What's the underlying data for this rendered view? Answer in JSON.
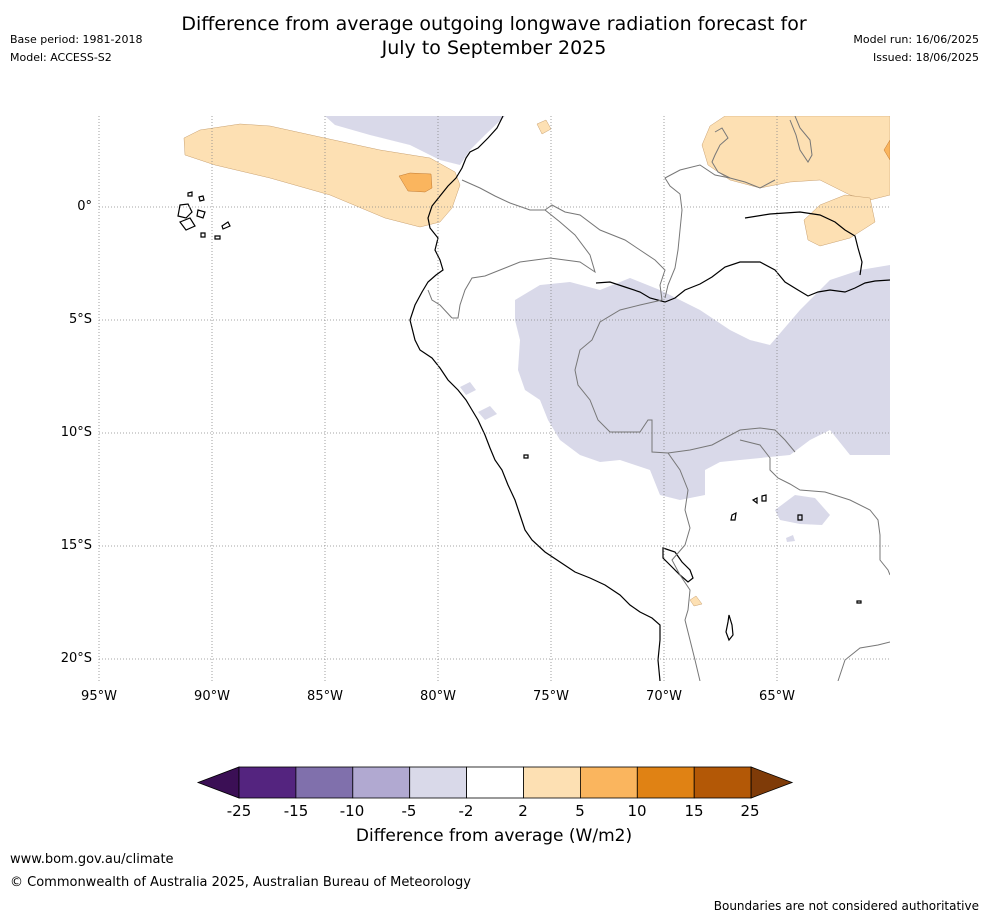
{
  "header": {
    "title_line1": "Difference from average outgoing longwave radiation forecast for",
    "title_line2": "July to September 2025",
    "base_period": "Base period: 1981-2018",
    "model": "Model: ACCESS-S2",
    "model_run": "Model run: 16/06/2025",
    "issued": "Issued: 18/06/2025"
  },
  "map": {
    "lon_labels": [
      "95°W",
      "90°W",
      "85°W",
      "80°W",
      "75°W",
      "70°W",
      "65°W"
    ],
    "lat_labels": [
      "0°",
      "5°S",
      "10°S",
      "15°S",
      "20°S"
    ],
    "grid": true
  },
  "colorbar": {
    "title": "Difference from average (W/m2)",
    "ticks": [
      "-25",
      "-15",
      "-10",
      "-5",
      "-2",
      "2",
      "5",
      "10",
      "15",
      "25"
    ],
    "colors": [
      "#3b0f55",
      "#54247f",
      "#8070ac",
      "#b1a9d1",
      "#d9d9e9",
      "#ffffff",
      "#fde0b3",
      "#fab55e",
      "#e08214",
      "#b35806",
      "#7f3b08"
    ]
  },
  "footer": {
    "url": "www.bom.gov.au/climate",
    "copyright": "© Commonwealth of Australia 2025, Australian Bureau of Meteorology",
    "disclaimer": "Boundaries are not considered authoritative"
  }
}
